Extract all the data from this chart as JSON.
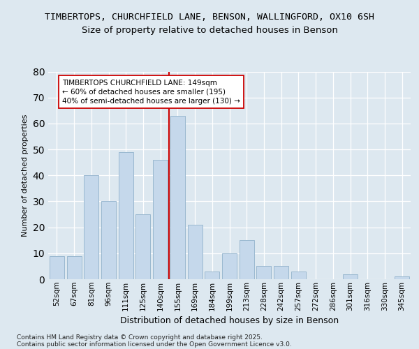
{
  "title_line1": "TIMBERTOPS, CHURCHFIELD LANE, BENSON, WALLINGFORD, OX10 6SH",
  "title_line2": "Size of property relative to detached houses in Benson",
  "xlabel": "Distribution of detached houses by size in Benson",
  "ylabel": "Number of detached properties",
  "categories": [
    "52sqm",
    "67sqm",
    "81sqm",
    "96sqm",
    "111sqm",
    "125sqm",
    "140sqm",
    "155sqm",
    "169sqm",
    "184sqm",
    "199sqm",
    "213sqm",
    "228sqm",
    "242sqm",
    "257sqm",
    "272sqm",
    "286sqm",
    "301sqm",
    "316sqm",
    "330sqm",
    "345sqm"
  ],
  "values": [
    9,
    9,
    40,
    30,
    49,
    25,
    46,
    63,
    21,
    3,
    10,
    15,
    5,
    5,
    3,
    0,
    0,
    2,
    0,
    0,
    1
  ],
  "bar_color": "#c5d8eb",
  "bar_edgecolor": "#9ab8d0",
  "vline_color": "#cc0000",
  "vline_x": 6.5,
  "annotation_text": "TIMBERTOPS CHURCHFIELD LANE: 149sqm\n← 60% of detached houses are smaller (195)\n40% of semi-detached houses are larger (130) →",
  "annotation_box_facecolor": "#ffffff",
  "annotation_box_edgecolor": "#cc0000",
  "ylim": [
    0,
    80
  ],
  "yticks": [
    0,
    10,
    20,
    30,
    40,
    50,
    60,
    70,
    80
  ],
  "background_color": "#dde8f0",
  "grid_color": "#ffffff",
  "footer_line1": "Contains HM Land Registry data © Crown copyright and database right 2025.",
  "footer_line2": "Contains public sector information licensed under the Open Government Licence v3.0.",
  "title_fontsize": 9.5,
  "subtitle_fontsize": 9.5,
  "ylabel_fontsize": 8,
  "xlabel_fontsize": 9,
  "tick_fontsize": 7.5,
  "annotation_fontsize": 7.5,
  "footer_fontsize": 6.5
}
